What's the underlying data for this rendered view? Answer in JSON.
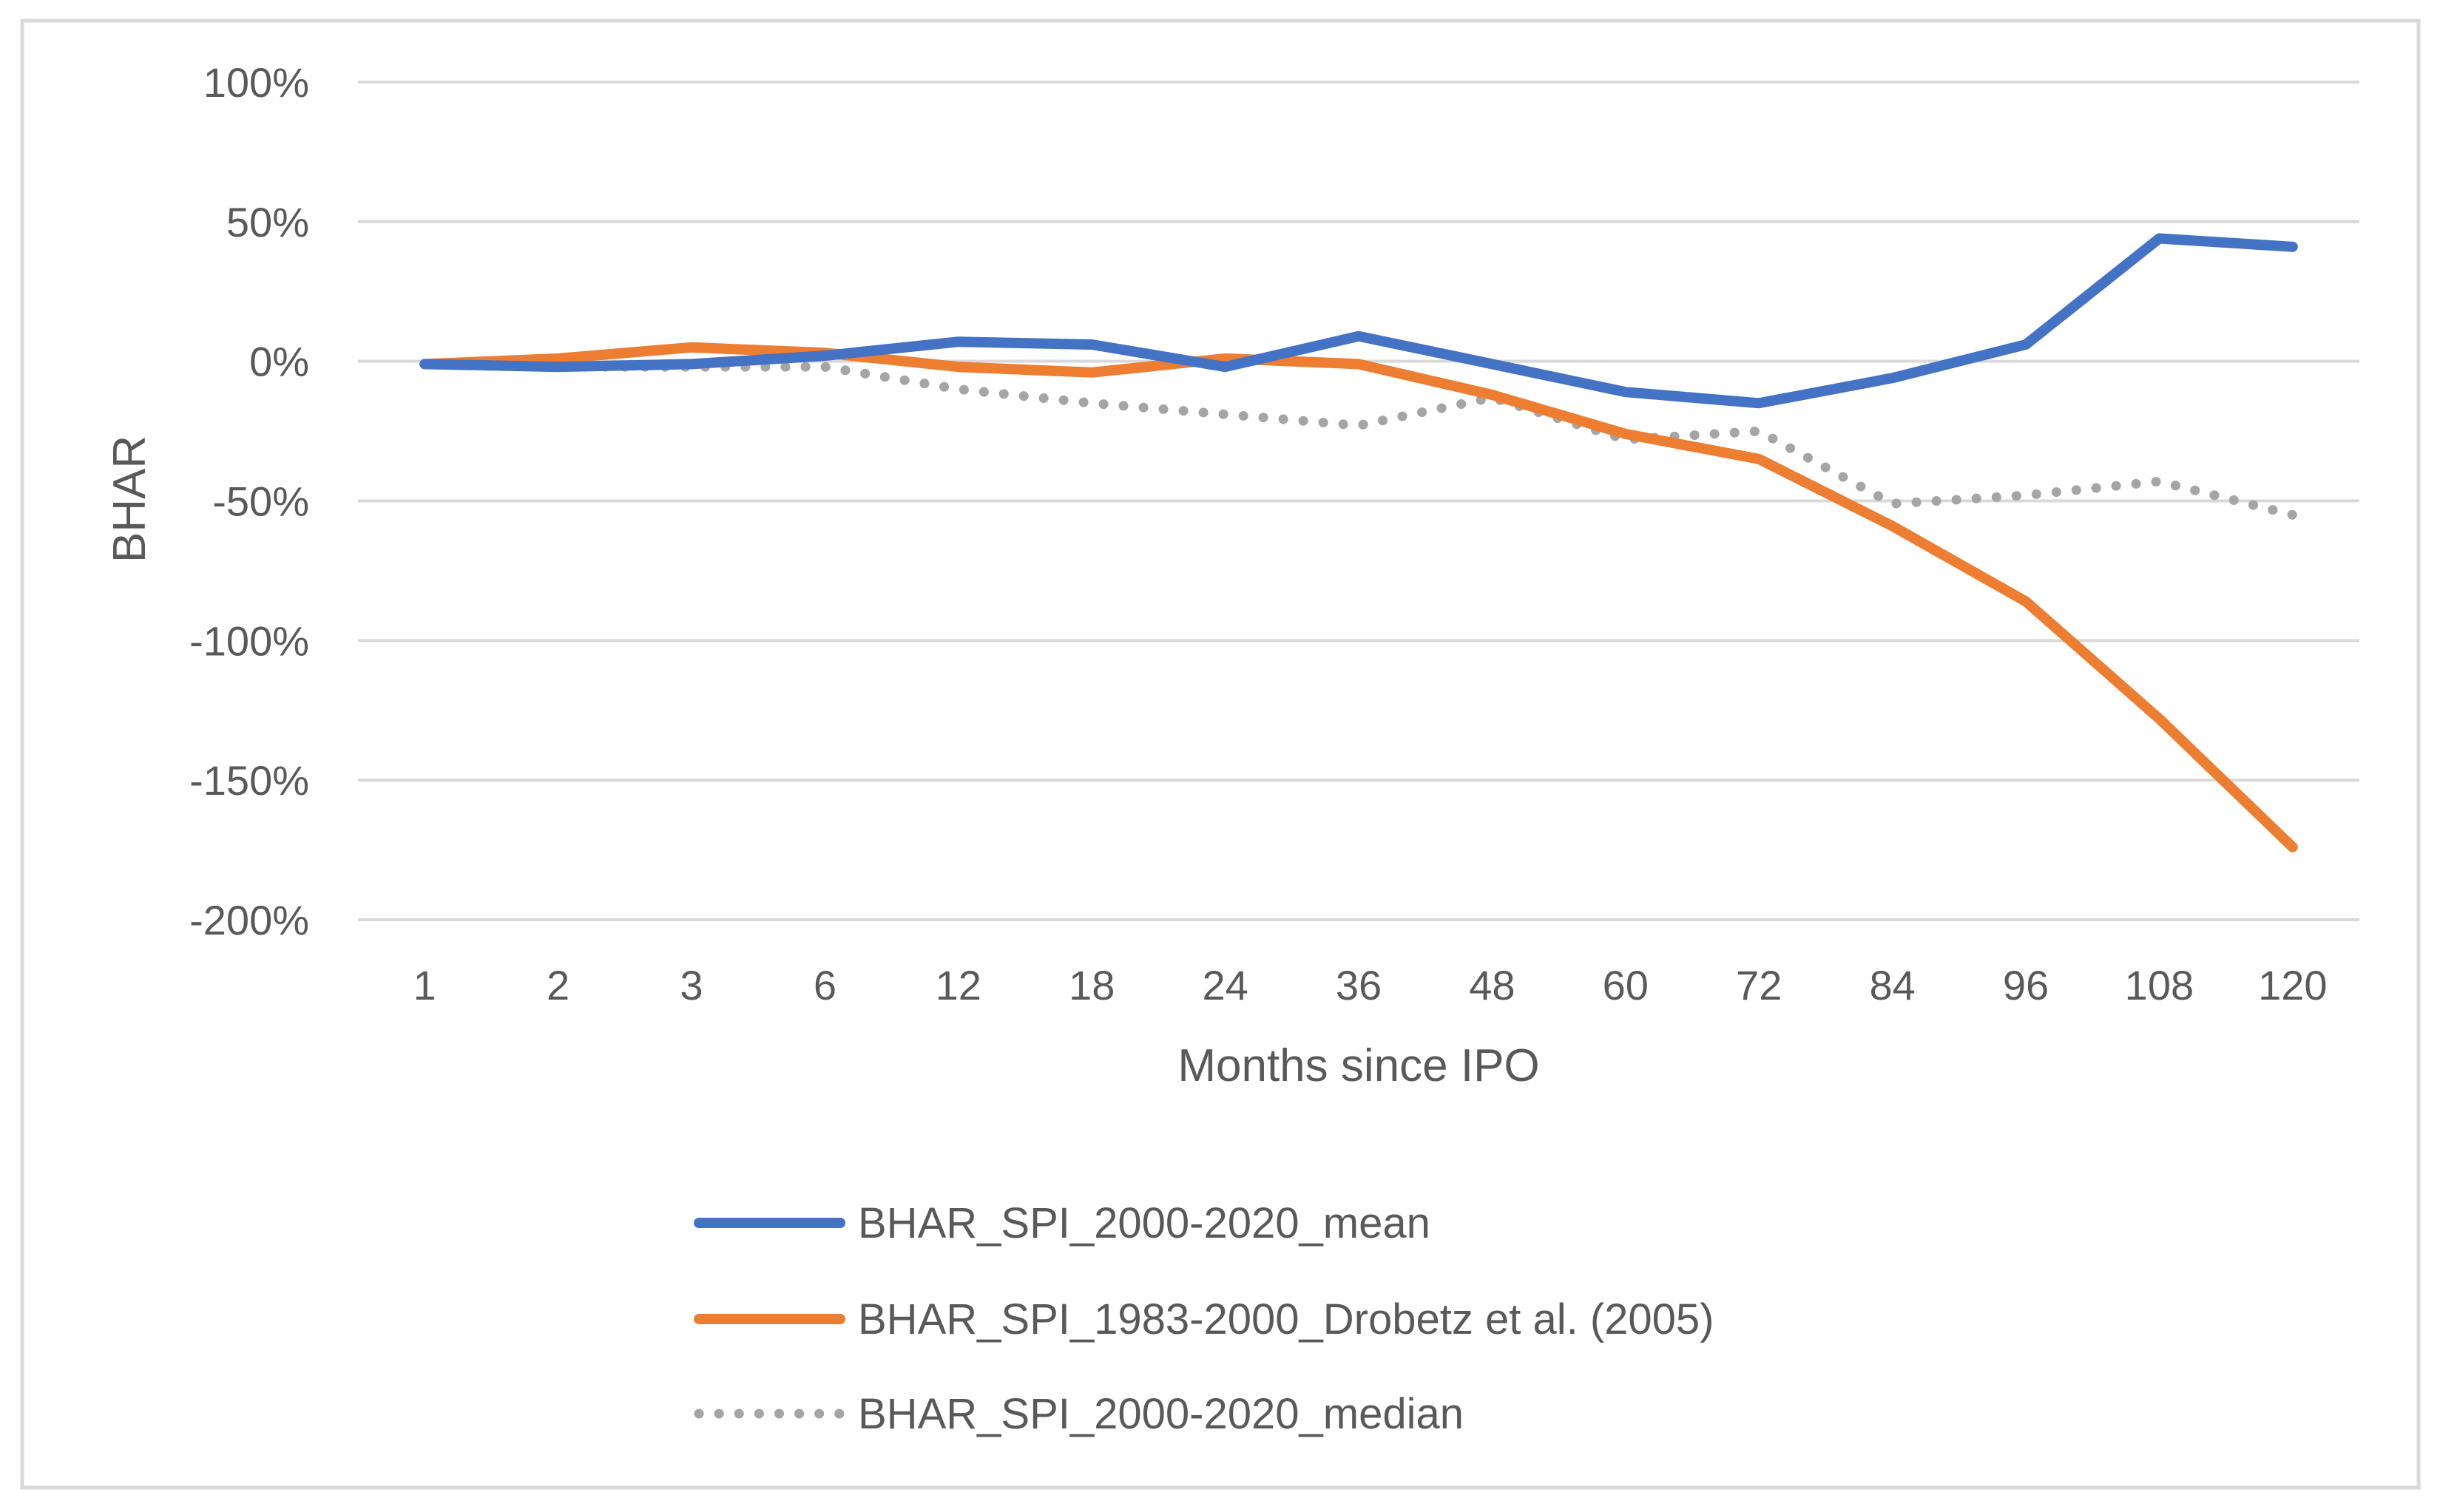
{
  "chart_data": {
    "type": "line",
    "title": "",
    "xlabel": "Months since IPO",
    "ylabel": "BHAR",
    "categories": [
      "1",
      "2",
      "3",
      "6",
      "12",
      "18",
      "24",
      "36",
      "48",
      "60",
      "72",
      "84",
      "96",
      "108",
      "120"
    ],
    "ylim": [
      -200,
      100
    ],
    "yticks": [
      100,
      50,
      0,
      -50,
      -100,
      -150,
      -200
    ],
    "ytick_labels": [
      "100%",
      "50%",
      "0%",
      "-50%",
      "-100%",
      "-150%",
      "-200%"
    ],
    "grid": "horizontal",
    "legend_position": "bottom",
    "series": [
      {
        "name": "BHAR_SPI_2000-2020_mean",
        "color": "#4472C4",
        "style": "solid",
        "values": [
          -1,
          -2,
          -1,
          2,
          7,
          6,
          -2,
          9,
          -1,
          -11,
          -15,
          -6,
          6,
          44,
          41
        ]
      },
      {
        "name": "BHAR_SPI_1983-2000_Drobetz et al. (2005)",
        "color": "#ED7D31",
        "style": "solid",
        "values": [
          -1,
          1,
          5,
          3,
          -2,
          -4,
          1,
          -1,
          -12,
          -26,
          -35,
          -59,
          -86,
          -128,
          -174
        ]
      },
      {
        "name": "BHAR_SPI_2000-2020_median",
        "color": "#A5A5A5",
        "style": "dotted",
        "values": [
          -1,
          -2,
          -2,
          -2,
          -10,
          -15,
          -19,
          -23,
          -13,
          -28,
          -25,
          -51,
          -48,
          -43,
          -55
        ]
      }
    ]
  }
}
